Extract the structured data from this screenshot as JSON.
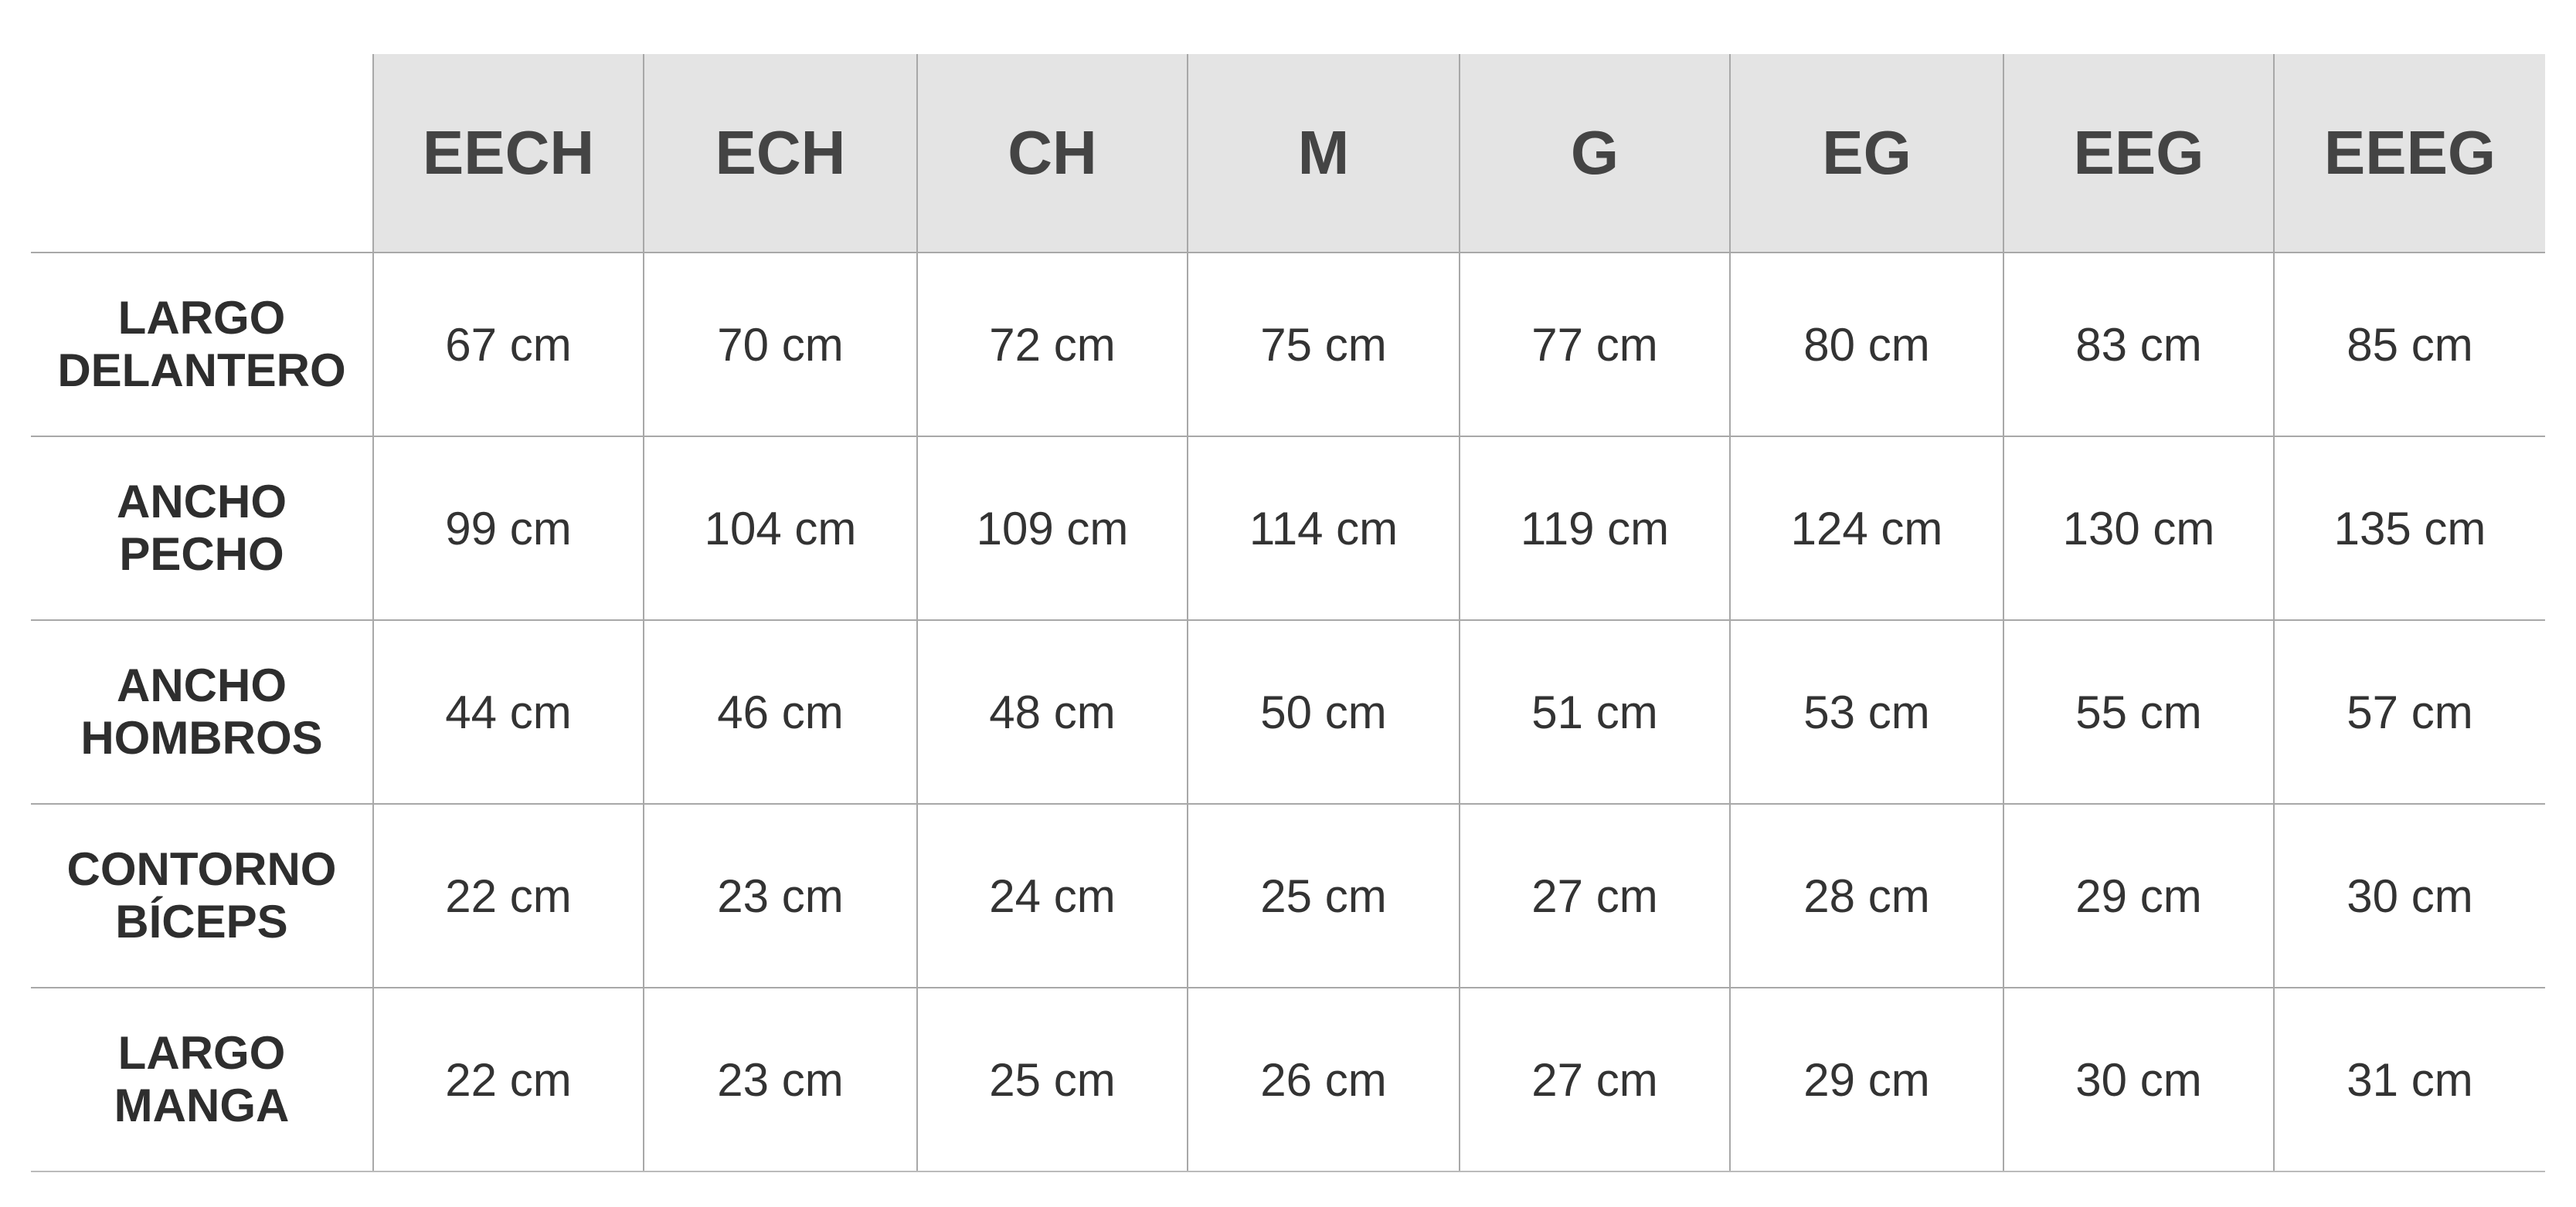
{
  "table": {
    "columns": [
      "EECH",
      "ECH",
      "CH",
      "M",
      "G",
      "EG",
      "EEG",
      "EEEG"
    ],
    "rows": [
      {
        "label": "LARGO\nDELANTERO",
        "values": [
          "67 cm",
          "70 cm",
          "72 cm",
          "75 cm",
          "77 cm",
          "80 cm",
          "83 cm",
          "85 cm"
        ]
      },
      {
        "label": "ANCHO\nPECHO",
        "values": [
          "99 cm",
          "104 cm",
          "109 cm",
          "114 cm",
          "119 cm",
          "124 cm",
          "130 cm",
          "135 cm"
        ]
      },
      {
        "label": "ANCHO\nHOMBROS",
        "values": [
          "44 cm",
          "46 cm",
          "48 cm",
          "50 cm",
          "51 cm",
          "53 cm",
          "55 cm",
          "57 cm"
        ]
      },
      {
        "label": "CONTORNO\nBÍCEPS",
        "values": [
          "22 cm",
          "23 cm",
          "24 cm",
          "25 cm",
          "27 cm",
          "28 cm",
          "29 cm",
          "30 cm"
        ]
      },
      {
        "label": "LARGO\nMANGA",
        "values": [
          "22 cm",
          "23 cm",
          "25 cm",
          "26 cm",
          "27 cm",
          "29 cm",
          "30 cm",
          "31 cm"
        ]
      }
    ]
  },
  "colors": {
    "header_bg": "#e4e4e4",
    "header_text": "#444444",
    "grid": "#a8a8a8"
  }
}
